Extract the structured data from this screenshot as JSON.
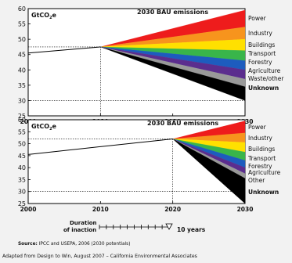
{
  "panel_labels": {
    "top_title": "2030 BAU emissions",
    "top_unit_main": "GtCO",
    "top_unit_sub": "2",
    "top_unit_end": "e",
    "bottom_title": "2030 BAU emissions",
    "bottom_unit_main": "GtCO",
    "bottom_unit_sub": "2",
    "bottom_unit_end": "e"
  },
  "inaction": {
    "label_line1": "Duration",
    "label_line2": "of inaction",
    "years_label": "10 years"
  },
  "source": {
    "label": "Source:",
    "text": " IPCC and USEPA, 2006 (2030 potentials)"
  },
  "footer": "Adapted from Design to Win, August 2007 – California Environmental Associates",
  "colors": {
    "Power": "#ee1c1c",
    "Industry": "#f7941d",
    "Buildings": "#ffe000",
    "Transport": "#39b54a",
    "Forestry": "#1d5cbe",
    "Agriculture": "#5b2d8e",
    "Waste/other": "#999999",
    "Unknown": "#000000"
  },
  "chart_data": [
    {
      "type": "area",
      "title": "2030 BAU emissions",
      "ylabel": "GtCO2e",
      "xlim": [
        2000,
        2030
      ],
      "ylim": [
        25,
        60
      ],
      "yticks": [
        25,
        30,
        35,
        40,
        45,
        50,
        55,
        60
      ],
      "xticks": [
        2000,
        2010,
        2020,
        2030
      ],
      "baseline": {
        "x": [
          2000,
          2010
        ],
        "y": [
          45.5,
          47.5
        ]
      },
      "wedge_start": {
        "x": 2010,
        "y": 47.5
      },
      "wedge_end_x": 2030,
      "reference_lines_y": [
        47.5,
        30
      ],
      "series": [
        {
          "name": "Power",
          "top": 59.5,
          "bottom": 54
        },
        {
          "name": "Industry",
          "top": 54,
          "bottom": 50
        },
        {
          "name": "Buildings",
          "top": 50,
          "bottom": 46.3
        },
        {
          "name": "Transport",
          "top": 46.3,
          "bottom": 43
        },
        {
          "name": "Forestry",
          "top": 43,
          "bottom": 40
        },
        {
          "name": "Agriculture",
          "top": 40,
          "bottom": 37
        },
        {
          "name": "Waste/other",
          "top": 37,
          "bottom": 34.5
        },
        {
          "name": "Unknown",
          "top": 34.5,
          "bottom": 30
        }
      ]
    },
    {
      "type": "area",
      "title": "2030 BAU emissions",
      "ylabel": "GtCO2e",
      "xlim": [
        2000,
        2030
      ],
      "ylim": [
        25,
        60
      ],
      "yticks": [
        25,
        30,
        35,
        40,
        45,
        50,
        55,
        60
      ],
      "xticks": [
        2000,
        2010,
        2020,
        2030
      ],
      "baseline": {
        "x": [
          2000,
          2020
        ],
        "y": [
          45.5,
          52
        ]
      },
      "wedge_start": {
        "x": 2020,
        "y": 52
      },
      "wedge_end_x": 2030,
      "reference_lines_y": [
        52,
        30
      ],
      "series": [
        {
          "name": "Power",
          "top": 59.5,
          "bottom": 54.5
        },
        {
          "name": "Industry",
          "top": 54.5,
          "bottom": 50.5
        },
        {
          "name": "Buildings",
          "top": 50.5,
          "bottom": 46.5
        },
        {
          "name": "Transport",
          "top": 46.5,
          "bottom": 43
        },
        {
          "name": "Forestry",
          "top": 43,
          "bottom": 40
        },
        {
          "name": "Agriculture",
          "top": 40,
          "bottom": 37.5
        },
        {
          "name": "Other",
          "top": 37.5,
          "bottom": 35.5
        },
        {
          "name": "Unknown",
          "top": 35.5,
          "bottom": 25
        }
      ]
    }
  ]
}
